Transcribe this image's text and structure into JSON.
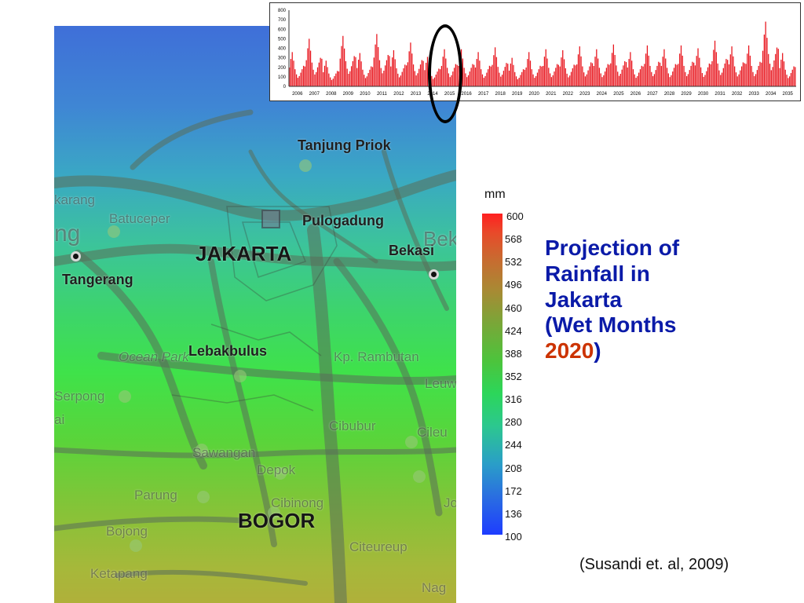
{
  "map": {
    "major_labels": {
      "jakarta": "JAKARTA",
      "bogor": "BOGOR"
    },
    "city_labels": {
      "tanjung_priok": "Tanjung Priok",
      "pulogadung": "Pulogadung",
      "bekasi": "Bekasi",
      "tangerang": "Tangerang",
      "lebakbulus": "Lebakbulus"
    },
    "background_labels": {
      "karang": "karang",
      "batuceper": "Batuceper",
      "ng": "ng",
      "bek": "Bek",
      "ocean_park": "Ocean Park",
      "kp_rambutan": "Kp. Rambutan",
      "leuw": "Leuw",
      "serpong": "Serpong",
      "cibubur": "Cibubur",
      "cileu": "Cileu",
      "sawangan": "Sawangan",
      "depok": "Depok",
      "parung": "Parung",
      "cibinong": "Cibinong",
      "jo": "Jo",
      "bojong": "Bojong",
      "citeureup": "Citeureup",
      "ketapang": "Ketapang",
      "nag": "Nag",
      "ai": "ai"
    }
  },
  "rainfall_chart": {
    "y_axis_ticks": [
      "800",
      "700",
      "600",
      "500",
      "400",
      "300",
      "200",
      "100",
      "0"
    ],
    "x_axis_ticks": [
      "2006",
      "2007",
      "2008",
      "2009",
      "2010",
      "2011",
      "2012",
      "2013",
      "2014",
      "2015",
      "2016",
      "2017",
      "2018",
      "2019",
      "2020",
      "2021",
      "2022",
      "2023",
      "2024",
      "2025",
      "2026",
      "2027",
      "2028",
      "2029",
      "2030",
      "2031",
      "2032",
      "2033",
      "2034",
      "2035"
    ],
    "bar_color": "#e8131b",
    "highlight_year": "2015"
  },
  "chart_data": {
    "type": "bar",
    "x": [
      "2006",
      "2007",
      "2008",
      "2009",
      "2010",
      "2011",
      "2012",
      "2013",
      "2014",
      "2015",
      "2016",
      "2017",
      "2018",
      "2019",
      "2020",
      "2021",
      "2022",
      "2023",
      "2024",
      "2025",
      "2026",
      "2027",
      "2028",
      "2029",
      "2030",
      "2031",
      "2032",
      "2033",
      "2034",
      "2035"
    ],
    "values": [
      360,
      500,
      270,
      530,
      350,
      550,
      380,
      460,
      310,
      390,
      390,
      360,
      410,
      300,
      360,
      390,
      380,
      420,
      390,
      440,
      360,
      430,
      390,
      430,
      400,
      480,
      420,
      430,
      680,
      350
    ],
    "ylim": [
      0,
      800
    ],
    "grid": false
  },
  "colorbar": {
    "unit": "mm",
    "ticks": [
      "600",
      "568",
      "532",
      "496",
      "460",
      "424",
      "388",
      "352",
      "316",
      "280",
      "244",
      "208",
      "172",
      "136",
      "100"
    ],
    "top_color": "#ff2020",
    "bottom_color": "#1e3cff"
  },
  "title": {
    "line1": "Projection of",
    "line2": "Rainfall in",
    "line3": "Jakarta",
    "line4": "(Wet Months",
    "year": "2020",
    "close": ")",
    "color": "#0a1aa8",
    "accent_color": "#cc3300"
  },
  "citation": "(Susandi et. al, 2009)"
}
